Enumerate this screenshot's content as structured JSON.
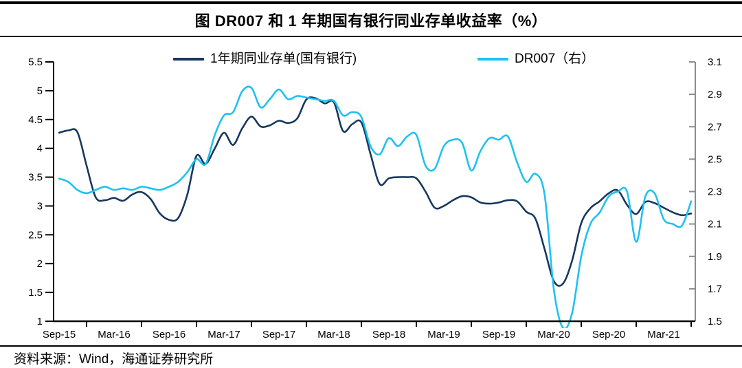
{
  "title": "图  DR007 和 1 年期国有银行同业存单收益率（%）",
  "legend": {
    "items": [
      {
        "label": "1年期同业存单(国有银行)",
        "color": "#17375E"
      },
      {
        "label": "DR007（右）",
        "color": "#1EC1F2"
      }
    ]
  },
  "footer": {
    "source": "资料来源：Wind，海通证券研究所"
  },
  "colors": {
    "navy": "#17375E",
    "cyan": "#1EC1F2",
    "axis_black": "#000000",
    "axis_gray": "#8C8C8C"
  },
  "chart_data": {
    "type": "line",
    "title": "图 DR007 和 1 年期国有银行同业存单收益率（%）",
    "grid": false,
    "legend_position": "top",
    "x_tick_labels": [
      "Sep-15",
      "Mar-16",
      "Sep-16",
      "Mar-17",
      "Sep-17",
      "Mar-18",
      "Sep-18",
      "Mar-19",
      "Sep-19",
      "Mar-20",
      "Sep-20",
      "Mar-21"
    ],
    "months": [
      "Sep-15",
      "Oct-15",
      "Nov-15",
      "Dec-15",
      "Jan-16",
      "Feb-16",
      "Mar-16",
      "Apr-16",
      "May-16",
      "Jun-16",
      "Jul-16",
      "Aug-16",
      "Sep-16",
      "Oct-16",
      "Nov-16",
      "Dec-16",
      "Jan-17",
      "Feb-17",
      "Mar-17",
      "Apr-17",
      "May-17",
      "Jun-17",
      "Jul-17",
      "Aug-17",
      "Sep-17",
      "Oct-17",
      "Nov-17",
      "Dec-17",
      "Jan-18",
      "Feb-18",
      "Mar-18",
      "Apr-18",
      "May-18",
      "Jun-18",
      "Jul-18",
      "Aug-18",
      "Sep-18",
      "Oct-18",
      "Nov-18",
      "Dec-18",
      "Jan-19",
      "Feb-19",
      "Mar-19",
      "Apr-19",
      "May-19",
      "Jun-19",
      "Jul-19",
      "Aug-19",
      "Sep-19",
      "Oct-19",
      "Nov-19",
      "Dec-19",
      "Jan-20",
      "Feb-20",
      "Mar-20",
      "Apr-20",
      "May-20",
      "Jun-20",
      "Jul-20",
      "Aug-20",
      "Sep-20",
      "Oct-20",
      "Nov-20",
      "Dec-20",
      "Jan-21",
      "Feb-21",
      "Mar-21",
      "Apr-21",
      "May-21",
      "Jun-21"
    ],
    "left_axis": {
      "min": 1,
      "max": 5.5,
      "ticks": [
        5.5,
        5,
        4.5,
        4,
        3.5,
        3,
        2.5,
        2,
        1.5,
        1
      ]
    },
    "right_axis": {
      "min": 1.5,
      "max": 3.1,
      "ticks": [
        3.1,
        2.9,
        2.7,
        2.5,
        2.3,
        2.1,
        1.9,
        1.7,
        1.5
      ]
    },
    "series": [
      {
        "name": "1年期同业存单(国有银行)",
        "slug": "ncd-1y",
        "axis": "left",
        "color": "#17375E",
        "values": [
          4.27,
          4.31,
          4.28,
          3.7,
          3.15,
          3.1,
          3.14,
          3.09,
          3.2,
          3.24,
          3.12,
          2.87,
          2.76,
          2.79,
          3.2,
          3.87,
          3.73,
          4.0,
          4.27,
          4.06,
          4.35,
          4.55,
          4.38,
          4.4,
          4.48,
          4.44,
          4.52,
          4.85,
          4.87,
          4.78,
          4.8,
          4.3,
          4.42,
          4.45,
          3.9,
          3.38,
          3.48,
          3.5,
          3.5,
          3.48,
          3.25,
          2.97,
          3.0,
          3.1,
          3.17,
          3.15,
          3.06,
          3.04,
          3.06,
          3.1,
          3.08,
          2.9,
          2.78,
          2.25,
          1.7,
          1.65,
          2.05,
          2.7,
          2.96,
          3.08,
          3.22,
          3.27,
          3.02,
          2.86,
          3.07,
          3.05,
          2.97,
          2.89,
          2.84,
          2.87
        ]
      },
      {
        "name": "DR007（右）",
        "slug": "dr007",
        "axis": "right",
        "color": "#1EC1F2",
        "values": [
          2.38,
          2.36,
          2.31,
          2.29,
          2.31,
          2.33,
          2.31,
          2.32,
          2.31,
          2.33,
          2.32,
          2.31,
          2.33,
          2.36,
          2.42,
          2.5,
          2.47,
          2.65,
          2.77,
          2.79,
          2.92,
          2.94,
          2.82,
          2.87,
          2.93,
          2.87,
          2.89,
          2.88,
          2.87,
          2.86,
          2.86,
          2.77,
          2.79,
          2.76,
          2.58,
          2.53,
          2.63,
          2.58,
          2.64,
          2.65,
          2.46,
          2.44,
          2.58,
          2.62,
          2.6,
          2.43,
          2.55,
          2.63,
          2.62,
          2.64,
          2.48,
          2.36,
          2.41,
          2.28,
          1.7,
          1.46,
          1.55,
          1.9,
          2.1,
          2.17,
          2.27,
          2.3,
          2.3,
          1.99,
          2.27,
          2.29,
          2.13,
          2.1,
          2.09,
          2.24
        ]
      }
    ]
  }
}
